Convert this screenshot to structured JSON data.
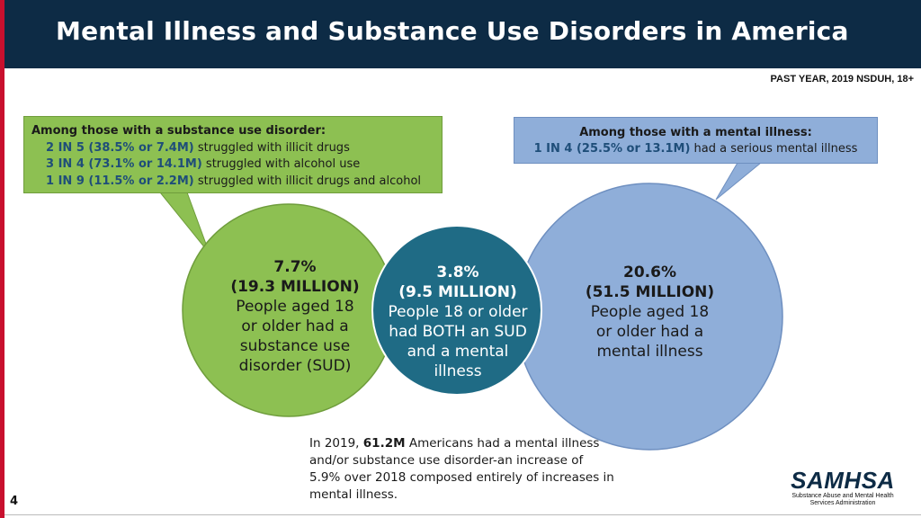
{
  "header": {
    "title": "Mental Illness and Substance Use Disorders in America",
    "source": "PAST YEAR, 2019 NSDUH, 18+"
  },
  "sud_box": {
    "heading": "Among those with a substance use disorder:",
    "rows": [
      {
        "stat": "2 IN 5 (38.5% or 7.4M)",
        "text": "struggled with illicit drugs"
      },
      {
        "stat": "3 IN 4 (73.1% or 14.1M)",
        "text": "struggled with alcohol use"
      },
      {
        "stat": "1 IN 9 (11.5% or 2.2M)",
        "text": "struggled with illicit drugs and alcohol"
      }
    ]
  },
  "mi_box": {
    "heading": "Among those with a mental illness:",
    "stat": "1 IN 4 (25.5% or 13.1M)",
    "text": "had a serious mental illness"
  },
  "circles": {
    "sud": {
      "pct": "7.7%",
      "count": "(19.3 MILLION)",
      "lines": [
        "People aged 18",
        "or older had a",
        "substance use",
        "disorder (SUD)"
      ]
    },
    "both": {
      "pct": "3.8%",
      "count": "(9.5 MILLION)",
      "lines": [
        "People 18 or older",
        "had BOTH an SUD",
        "and a mental",
        "illness"
      ]
    },
    "mi": {
      "pct": "20.6%",
      "count": "(51.5 MILLION)",
      "lines": [
        "People aged 18",
        "or older had a",
        "mental illness"
      ]
    }
  },
  "note": {
    "pre": "In 2019,",
    "bold": "61.2M",
    "post": "Americans had a mental illness and/or substance use disorder-an increase of 5.9% over 2018 composed entirely of increases in mental illness."
  },
  "page_number": "4",
  "logo": {
    "word": "SAMHSA",
    "sub_line1": "Substance Abuse and Mental Health",
    "sub_line2": "Services Administration"
  },
  "colors": {
    "header_bg": "#0d2b45",
    "accent_red": "#c8102e",
    "sud_green": "#8dc052",
    "both_teal": "#1f6b85",
    "mi_blue": "#8faed9",
    "stat_blue": "#1f4e79"
  }
}
